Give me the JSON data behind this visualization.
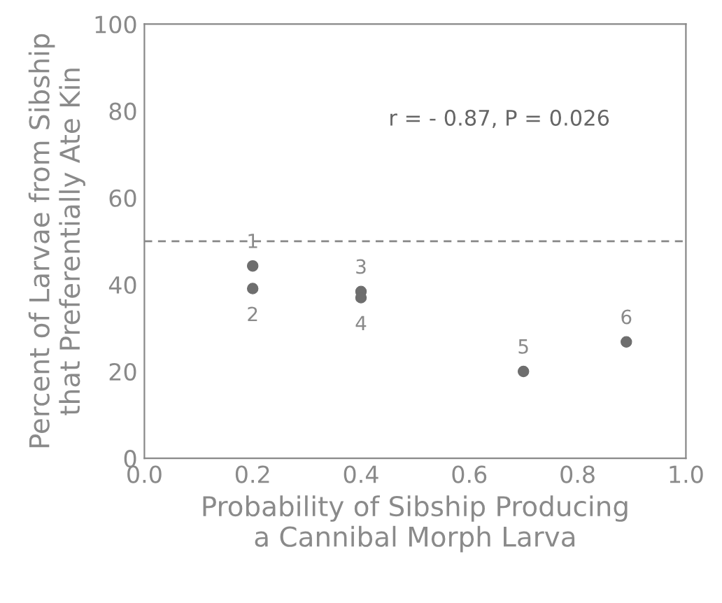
{
  "chart_data": {
    "type": "scatter",
    "xlabel": "Probability of Sibship Producing\na Cannibal Morph Larva",
    "ylabel": "Percent of Larvae from Sibship\nthat Preferentially Ate Kin",
    "x": [
      0.2,
      0.2,
      0.4,
      0.4,
      0.7,
      0.89
    ],
    "series": [
      {
        "color": "#6e6e6e",
        "values": [
          44.3,
          39.1,
          38.4,
          37.0,
          20.0,
          26.8
        ]
      }
    ],
    "xlim": [
      0.0,
      1.0
    ],
    "xticks": [
      {
        "value": 0.0,
        "label": "0.0"
      },
      0.2,
      0.4,
      0.6,
      0.8,
      {
        "value": 1.0,
        "label": "1.0"
      }
    ],
    "ylim": [
      0,
      100
    ],
    "yticks": [
      0,
      20,
      40,
      60,
      80,
      100
    ],
    "ref_lines": [
      {
        "axis": "y",
        "value": 50,
        "color": "#888888",
        "line_style": "dashed"
      }
    ],
    "annotations": [
      "r = - 0.87, P = 0.026",
      {
        "text": "1",
        "x": 0.2,
        "y": 44.3
      },
      {
        "text": "2",
        "x": 0.2,
        "y": 39.1
      },
      {
        "text": "3",
        "x": 0.4,
        "y": 38.4
      },
      {
        "text": "4",
        "x": 0.4,
        "y": 37.0
      },
      {
        "text": "5",
        "x": 0.7,
        "y": 20.0
      },
      {
        "text": "6",
        "x": 0.89,
        "y": 26.8
      }
    ],
    "marker": "circle",
    "grid": false,
    "legend": false
  }
}
